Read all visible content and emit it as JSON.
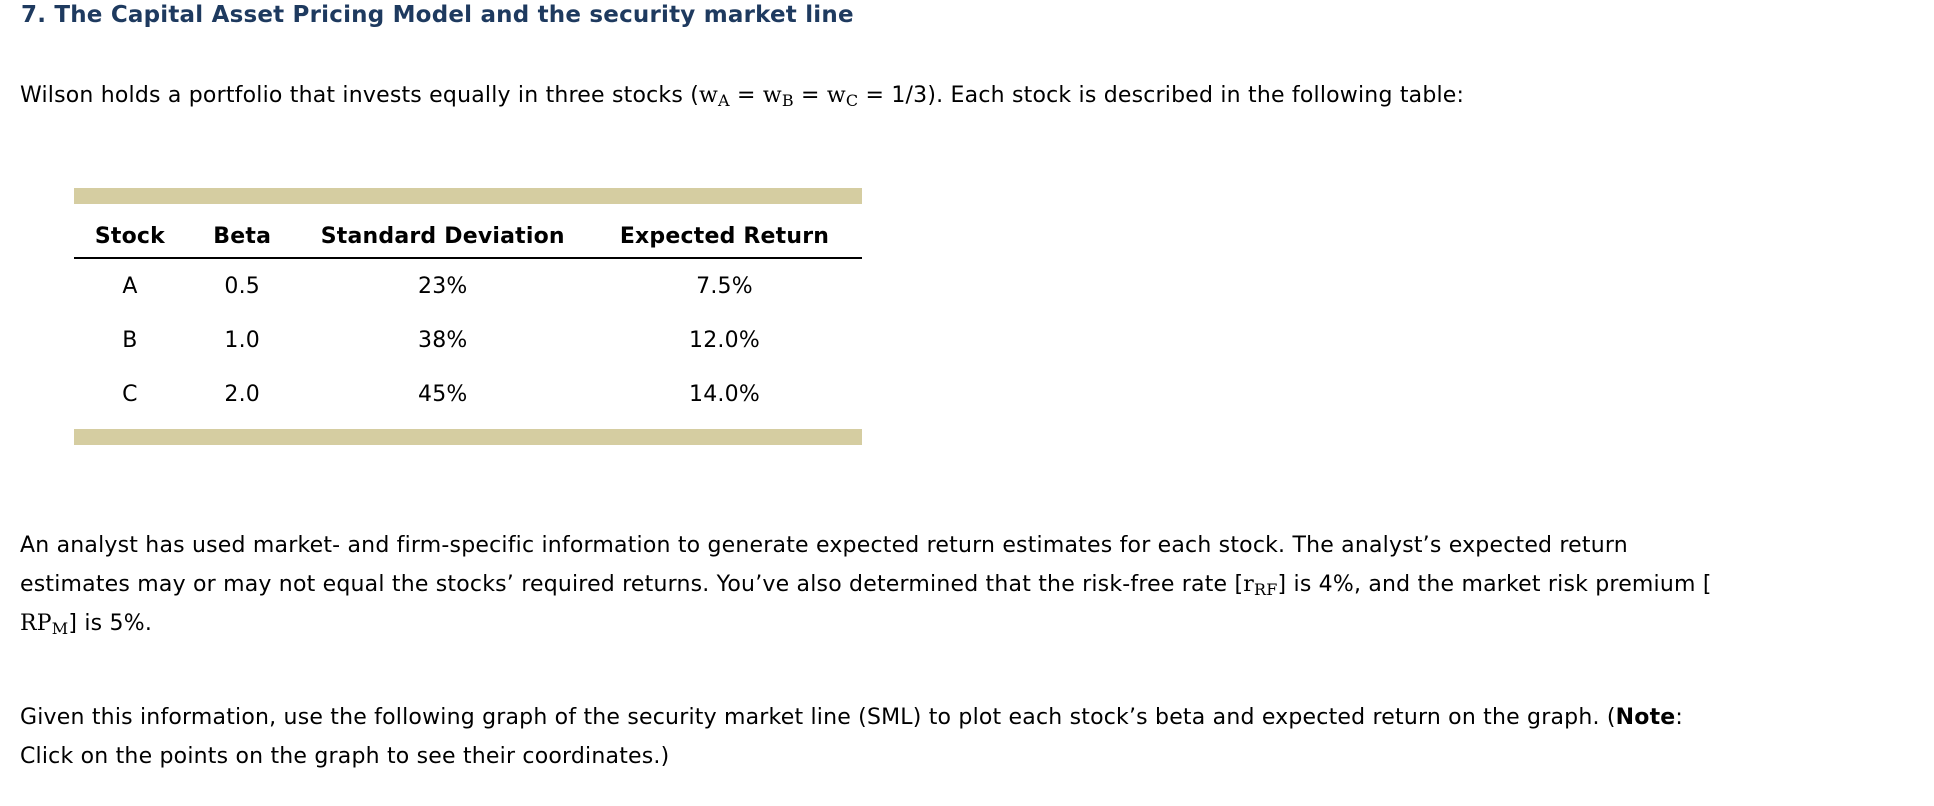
{
  "heading": "7. The Capital Asset Pricing Model and the security market line",
  "intro": {
    "t1": "Wilson holds a portfolio that invests equally in three stocks (",
    "w_base": "w",
    "w_sub_a": "A",
    "w_sub_b": "B",
    "w_sub_c": "C",
    "eq": " = ",
    "t2": " = 1/3). Each stock is described in the following table:"
  },
  "table": {
    "headers": [
      "Stock",
      "Beta",
      "Standard Deviation",
      "Expected Return"
    ],
    "rows": [
      [
        "A",
        "0.5",
        "23%",
        "7.5%"
      ],
      [
        "B",
        "1.0",
        "38%",
        "12.0%"
      ],
      [
        "C",
        "2.0",
        "45%",
        "14.0%"
      ]
    ],
    "accent_color": "#d5cda1"
  },
  "analyst": {
    "line1": "An analyst has used market- and firm-specific information to generate expected return estimates for each stock. The analyst’s expected return",
    "line2a": "estimates may or may not equal the stocks’ required returns. You’ve also determined that the risk-free rate [",
    "rf_base": "r",
    "rf_sub": "RF",
    "line2b": "] is 4%, and the market risk premium [",
    "rp_base": "RP",
    "rp_sub": "M",
    "line3": "] is 5%."
  },
  "instruction": {
    "line1": "Given this information, use the following graph of the security market line (SML) to plot each stock’s beta and expected return on the graph. (",
    "note_label": "Note",
    "colon": ":",
    "line2": "Click on the points on the graph to see their coordinates.)"
  },
  "colors": {
    "heading_navy": "#1e3a5f",
    "table_accent_tan": "#d5cda1",
    "body_text": "#000000"
  }
}
